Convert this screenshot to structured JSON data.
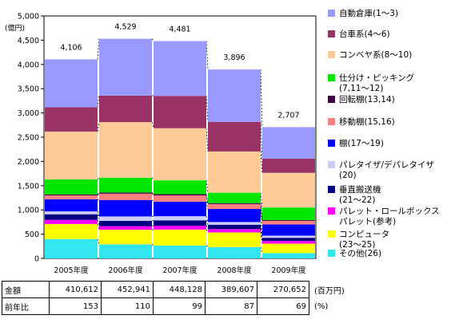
{
  "chart_data": {
    "type": "stacked-bar",
    "y_unit_label": "(億円)",
    "ylim": [
      0,
      5000
    ],
    "y_ticks": [
      "0",
      "500",
      "1,000",
      "1,500",
      "2,000",
      "2,500",
      "3,000",
      "3,500",
      "4,000",
      "4,500",
      "5,000"
    ],
    "y_tick_values": [
      0,
      500,
      1000,
      1500,
      2000,
      2500,
      3000,
      3500,
      4000,
      4500,
      5000
    ],
    "categories": [
      "2005年度",
      "2006年度",
      "2007年度",
      "2008年度",
      "2009年度"
    ],
    "totals": [
      4106,
      4529,
      4481,
      3896,
      2707
    ],
    "total_labels": [
      "4,106",
      "4,529",
      "4,481",
      "3,896",
      "2,707"
    ],
    "series": [
      {
        "name": "その他(26)",
        "color": "#33e6f0",
        "values": [
          400,
          290,
          265,
          235,
          110
        ]
      },
      {
        "name": "コンピュータ\n(23〜25)",
        "color": "#ffff00",
        "values": [
          310,
          300,
          330,
          300,
          195
        ]
      },
      {
        "name": "パレット・ロールボックス\nパレット(参考)",
        "color": "#ff00ff",
        "values": [
          85,
          75,
          80,
          70,
          55
        ]
      },
      {
        "name": "垂直搬送機\n(21〜22)",
        "color": "#000080",
        "values": [
          115,
          110,
          110,
          90,
          65
        ]
      },
      {
        "name": "パレタイザ/デパレタイザ\n(20)",
        "color": "#ccccff",
        "values": [
          60,
          90,
          85,
          55,
          45
        ]
      },
      {
        "name": "棚(17〜19)",
        "color": "#0000ff",
        "values": [
          250,
          340,
          300,
          270,
          230
        ]
      },
      {
        "name": "移動棚(15,16)",
        "color": "#ff8080",
        "values": [
          80,
          130,
          130,
          100,
          75
        ]
      },
      {
        "name": "回転棚(13,14)",
        "color": "#400040",
        "values": [
          20,
          25,
          25,
          20,
          15
        ]
      },
      {
        "name": "仕分け・ピッキング\n(7,11〜12)",
        "color": "#00e600",
        "values": [
          310,
          305,
          285,
          215,
          260
        ]
      },
      {
        "name": "コンベヤ系(8〜10)",
        "color": "#ffcc99",
        "values": [
          986,
          1145,
          1075,
          850,
          715
        ]
      },
      {
        "name": "台車系(4〜6)",
        "color": "#993366",
        "values": [
          500,
          549,
          666,
          611,
          292
        ]
      },
      {
        "name": "自動倉庫(1〜3)",
        "color": "#9999ff",
        "values": [
          990,
          1170,
          1130,
          1080,
          650
        ]
      }
    ],
    "legend_order": [
      "自動倉庫(1〜3)",
      "台車系(4〜6)",
      "コンベヤ系(8〜10)",
      "仕分け・ピッキング\n(7,11〜12)",
      "回転棚(13,14)",
      "移動棚(15,16)",
      "棚(17〜19)",
      "パレタイザ/デパレタイザ\n(20)",
      "垂直搬送機\n(21〜22)",
      "パレット・ロールボックス\nパレット(参考)",
      "コンピュータ\n(23〜25)",
      "その他(26)"
    ],
    "legend_placement": "right"
  },
  "table": {
    "rows": [
      {
        "label": "金額",
        "values": [
          "410,612",
          "452,941",
          "448,128",
          "389,607",
          "270,652"
        ],
        "unit": "(百万円)"
      },
      {
        "label": "前年比",
        "values": [
          "153",
          "110",
          "99",
          "87",
          "69"
        ],
        "unit": "(%)"
      }
    ]
  }
}
